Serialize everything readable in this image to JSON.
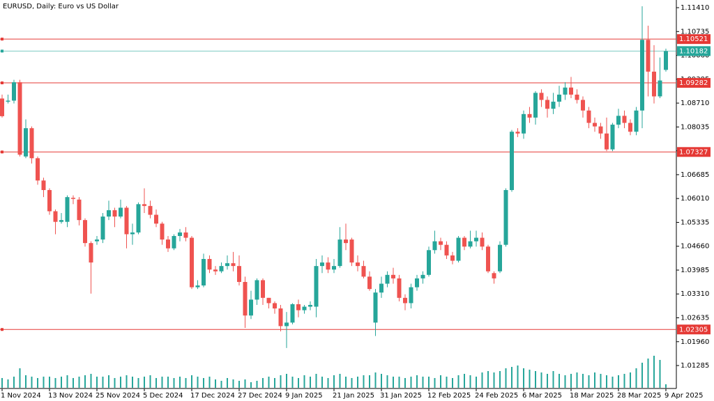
{
  "chart_data": {
    "type": "candlestick",
    "title": "EURUSD, Daily:  Euro vs US Dollar",
    "categories": [
      "1 Nov 2024",
      null,
      null,
      null,
      null,
      null,
      null,
      null,
      "13 Nov 2024",
      null,
      null,
      null,
      null,
      null,
      null,
      null,
      "25 Nov 2024",
      null,
      null,
      null,
      null,
      null,
      null,
      null,
      "5 Dec 2024",
      null,
      null,
      null,
      null,
      null,
      null,
      null,
      "17 Dec 2024",
      null,
      null,
      null,
      null,
      null,
      null,
      null,
      "27 Dec 2024",
      null,
      null,
      null,
      null,
      null,
      null,
      null,
      "9 Jan 2025",
      null,
      null,
      null,
      null,
      null,
      null,
      null,
      "21 Jan 2025",
      null,
      null,
      null,
      null,
      null,
      null,
      null,
      "31 Jan 2025",
      null,
      null,
      null,
      null,
      null,
      null,
      null,
      "12 Feb 2025",
      null,
      null,
      null,
      null,
      null,
      null,
      null,
      "24 Feb 2025",
      null,
      null,
      null,
      null,
      null,
      null,
      null,
      "6 Mar 2025",
      null,
      null,
      null,
      null,
      null,
      null,
      null,
      "18 Mar 2025",
      null,
      null,
      null,
      null,
      null,
      null,
      null,
      "28 Mar 2025",
      null,
      null,
      null,
      null,
      null,
      null,
      null,
      "9 Apr 2025"
    ],
    "open": [
      1.0884,
      1.0875,
      1.0878,
      1.093,
      1.072,
      1.08,
      1.0715,
      1.0652,
      1.0625,
      1.0565,
      1.0535,
      1.0535,
      1.0603,
      1.0598,
      1.054,
      1.0475,
      1.048,
      1.0485,
      1.055,
      1.0568,
      1.055,
      1.0575,
      1.05,
      1.0505,
      1.0585,
      1.058,
      1.0555,
      1.053,
      1.0485,
      1.046,
      1.0495,
      1.0505,
      1.049,
      1.035,
      1.0355,
      1.043,
      1.04,
      1.0395,
      1.041,
      1.0418,
      1.041,
      1.0365,
      1.027,
      1.0315,
      1.037,
      1.032,
      1.0305,
      1.029,
      1.024,
      1.025,
      1.0302,
      1.0285,
      1.0295,
      1.0295,
      1.041,
      1.042,
      1.04,
      1.041,
      1.0485,
      1.0485,
      1.042,
      1.041,
      1.038,
      1.025,
      1.0335,
      1.036,
      1.0385,
      1.0375,
      1.032,
      1.0305,
      1.035,
      1.0375,
      1.0385,
      1.0455,
      1.048,
      1.047,
      1.044,
      1.0425,
      1.049,
      1.0465,
      1.048,
      1.049,
      1.0465,
      1.039,
      1.0395,
      1.047,
      1.0625,
      1.079,
      1.0785,
      1.084,
      1.083,
      1.09,
      1.088,
      1.0855,
      1.0875,
      1.0895,
      1.0915,
      1.0895,
      1.088,
      1.085,
      1.0815,
      1.0805,
      1.0785,
      1.074,
      1.081,
      1.0835,
      1.0815,
      1.079,
      1.085,
      1.105,
      1.096,
      1.089,
      1.0965
    ],
    "high": [
      1.0895,
      1.0895,
      1.0937,
      1.0937,
      1.0825,
      1.0805,
      1.072,
      1.066,
      1.063,
      1.057,
      1.056,
      1.061,
      1.061,
      1.0605,
      1.0545,
      1.048,
      1.0495,
      1.056,
      1.0595,
      1.0575,
      1.0598,
      1.058,
      1.053,
      1.059,
      1.063,
      1.0595,
      1.057,
      1.0535,
      1.0495,
      1.05,
      1.0515,
      1.052,
      1.0495,
      1.037,
      1.0445,
      1.044,
      1.041,
      1.042,
      1.044,
      1.045,
      1.044,
      1.038,
      1.034,
      1.0375,
      1.0375,
      1.032,
      1.031,
      1.03,
      1.028,
      1.0305,
      1.0315,
      1.03,
      1.031,
      1.043,
      1.044,
      1.0435,
      1.043,
      1.052,
      1.053,
      1.049,
      1.044,
      1.0425,
      1.0395,
      1.0345,
      1.038,
      1.0395,
      1.0405,
      1.0385,
      1.033,
      1.036,
      1.0385,
      1.0395,
      1.0465,
      1.051,
      1.049,
      1.048,
      1.045,
      1.0495,
      1.0495,
      1.051,
      1.051,
      1.0505,
      1.047,
      1.0395,
      1.048,
      1.063,
      1.0795,
      1.08,
      1.085,
      1.086,
      1.0905,
      1.091,
      1.089,
      1.09,
      1.092,
      1.093,
      1.0945,
      1.091,
      1.089,
      1.086,
      1.083,
      1.0815,
      1.083,
      1.0815,
      1.0855,
      1.085,
      1.0825,
      1.086,
      1.1145,
      1.109,
      1.1035,
      1.1,
      1.1025
    ],
    "low": [
      1.083,
      1.087,
      1.087,
      1.072,
      1.0715,
      1.07,
      1.064,
      1.0605,
      1.0555,
      1.05,
      1.053,
      1.052,
      1.0585,
      1.0525,
      1.0465,
      1.0332,
      1.047,
      1.0475,
      1.054,
      1.052,
      1.0545,
      1.046,
      1.047,
      1.05,
      1.056,
      1.0545,
      1.052,
      1.047,
      1.045,
      1.0455,
      1.048,
      1.048,
      1.0345,
      1.0345,
      1.035,
      1.039,
      1.0385,
      1.039,
      1.04,
      1.0395,
      1.0355,
      1.0235,
      1.026,
      1.03,
      1.03,
      1.029,
      1.0275,
      1.0225,
      1.0178,
      1.0245,
      1.0265,
      1.0275,
      1.0285,
      1.0265,
      1.039,
      1.039,
      1.039,
      1.0405,
      1.0455,
      1.041,
      1.0395,
      1.0375,
      1.034,
      1.0212,
      1.032,
      1.035,
      1.036,
      1.031,
      1.0285,
      1.029,
      1.034,
      1.036,
      1.038,
      1.0445,
      1.0455,
      1.043,
      1.0415,
      1.042,
      1.0455,
      1.046,
      1.0465,
      1.0455,
      1.039,
      1.036,
      1.039,
      1.0465,
      1.062,
      1.0775,
      1.077,
      1.0815,
      1.081,
      1.086,
      1.083,
      1.084,
      1.086,
      1.088,
      1.0885,
      1.087,
      1.083,
      1.08,
      1.079,
      1.077,
      1.0735,
      1.0735,
      1.08,
      1.08,
      1.078,
      1.078,
      1.08,
      1.089,
      1.087,
      1.0885,
      1.096
    ],
    "close": [
      1.0834,
      1.0878,
      1.093,
      1.0725,
      1.08,
      1.0715,
      1.0652,
      1.0625,
      1.0565,
      1.0535,
      1.054,
      1.0605,
      1.06,
      1.054,
      1.0475,
      1.042,
      1.0485,
      1.055,
      1.0568,
      1.055,
      1.0575,
      1.05,
      1.0505,
      1.0585,
      1.058,
      1.0555,
      1.053,
      1.0485,
      1.046,
      1.0495,
      1.0505,
      1.049,
      1.035,
      1.0355,
      1.043,
      1.04,
      1.0395,
      1.041,
      1.0418,
      1.041,
      1.0365,
      1.027,
      1.0315,
      1.037,
      1.032,
      1.0305,
      1.029,
      1.024,
      1.025,
      1.0302,
      1.0285,
      1.0295,
      1.03,
      1.041,
      1.042,
      1.04,
      1.041,
      1.0485,
      1.0475,
      1.042,
      1.041,
      1.038,
      1.0345,
      1.0335,
      1.036,
      1.0385,
      1.0375,
      1.032,
      1.0305,
      1.035,
      1.0375,
      1.0385,
      1.0455,
      1.048,
      1.047,
      1.044,
      1.0425,
      1.049,
      1.0465,
      1.048,
      1.049,
      1.0465,
      1.0395,
      1.0375,
      1.047,
      1.0625,
      1.079,
      1.0785,
      1.084,
      1.083,
      1.09,
      1.088,
      1.0855,
      1.0875,
      1.0895,
      1.0915,
      1.0895,
      1.088,
      1.085,
      1.0815,
      1.0805,
      1.0785,
      1.074,
      1.081,
      1.0835,
      1.0815,
      1.079,
      1.085,
      1.105,
      1.096,
      1.089,
      1.0935,
      1.1018
    ],
    "volume": [
      14,
      12,
      16,
      28,
      18,
      16,
      14,
      16,
      16,
      14,
      16,
      18,
      14,
      16,
      18,
      20,
      16,
      16,
      18,
      14,
      16,
      18,
      16,
      14,
      16,
      18,
      14,
      16,
      16,
      14,
      16,
      14,
      18,
      16,
      14,
      16,
      12,
      10,
      14,
      12,
      10,
      12,
      8,
      10,
      14,
      16,
      14,
      18,
      20,
      16,
      14,
      18,
      16,
      20,
      16,
      14,
      18,
      20,
      16,
      14,
      16,
      18,
      18,
      22,
      20,
      18,
      16,
      16,
      14,
      16,
      18,
      16,
      16,
      14,
      18,
      16,
      14,
      18,
      20,
      18,
      16,
      22,
      24,
      22,
      24,
      28,
      30,
      32,
      28,
      26,
      24,
      22,
      20,
      24,
      20,
      18,
      20,
      22,
      20,
      18,
      22,
      20,
      18,
      16,
      18,
      20,
      22,
      28,
      36,
      42,
      46,
      40,
      5
    ],
    "up_color": "#26a69a",
    "down_color": "#ef5350",
    "volume_color": "#26a69a",
    "ylim": [
      1.00636,
      1.11627
    ],
    "yticks": [
      {
        "value": 1.1141,
        "label": "1.11410"
      },
      1.10735,
      {
        "value": 1.1006,
        "label": "1.10060"
      },
      1.09385,
      {
        "value": 1.0871,
        "label": "1.08710"
      },
      1.08035,
      {
        "value": 1.0736,
        "label": "1.07360"
      },
      1.06685,
      {
        "value": 1.0601,
        "label": "1.06010"
      },
      1.05335,
      {
        "value": 1.0466,
        "label": "1.04660"
      },
      1.03985,
      {
        "value": 1.0331,
        "label": "1.03310"
      },
      1.02635,
      {
        "value": 1.0196,
        "label": "1.01960"
      },
      1.01285
    ],
    "levels": [
      {
        "value": 1.10521,
        "color": "#e53935"
      },
      {
        "value": 1.09282,
        "color": "#e53935"
      },
      {
        "value": 1.07327,
        "color": "#e53935"
      },
      {
        "value": 1.02305,
        "color": "#e53935"
      }
    ],
    "bid": {
      "value": 1.10182,
      "color": "#26a69a"
    }
  }
}
